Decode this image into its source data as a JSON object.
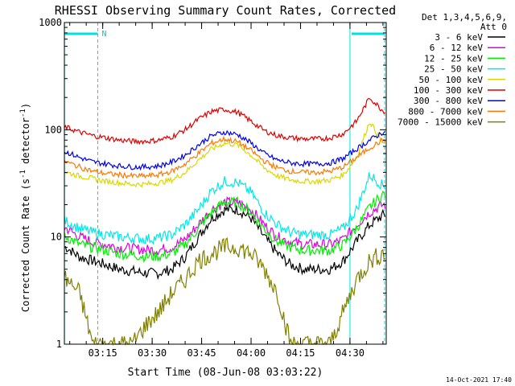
{
  "chart_data": {
    "type": "line",
    "title": "RHESSI Observing Summary Count Rates, Corrected",
    "xlabel": "Start Time (08-Jun-08 03:03:22)",
    "ylabel_main": "Corrected Count Rate (s",
    "ylabel_sup1": "-1",
    "ylabel_mid": " detector",
    "ylabel_sup2": "-1",
    "ylabel_end": ")",
    "y_scale": "log",
    "ylim": [
      1,
      1000
    ],
    "xlim_minutes": [
      3.37,
      101.0
    ],
    "x_ticks": [
      {
        "label": "03:15",
        "minute": 15
      },
      {
        "label": "03:30",
        "minute": 30
      },
      {
        "label": "03:45",
        "minute": 45
      },
      {
        "label": "04:00",
        "minute": 60
      },
      {
        "label": "04:15",
        "minute": 75
      },
      {
        "label": "04:30",
        "minute": 90
      }
    ],
    "y_ticks": [
      {
        "label": "1",
        "value": 1
      },
      {
        "label": "10",
        "value": 10
      },
      {
        "label": "100",
        "value": 100
      },
      {
        "label": "1000",
        "value": 1000
      }
    ],
    "legend_header": [
      "Det 1,3,4,5,6,9,",
      "Att 0"
    ],
    "legend_placement": "right",
    "night_bars": [
      {
        "from_minute": 3.4,
        "to_minute": 13.5,
        "label": "N"
      },
      {
        "from_minute": 90.5,
        "to_minute": 100.5,
        "label": ""
      }
    ],
    "saa_lines_minutes": [
      3.4,
      13.5,
      90.0,
      100.5
    ],
    "series": [
      {
        "name": "3 - 6 keV",
        "color": "#000000",
        "x": [
          4,
          8,
          12,
          16,
          20,
          24,
          28,
          32,
          36,
          40,
          44,
          48,
          52,
          56,
          60,
          64,
          68,
          72,
          76,
          80,
          84,
          88,
          92,
          96,
          100
        ],
        "y": [
          8,
          6.5,
          6,
          5.5,
          5,
          4.8,
          4.6,
          4.6,
          5,
          6.5,
          10,
          15,
          18,
          18,
          15,
          10,
          7,
          5.5,
          5,
          5,
          5,
          6,
          9,
          13,
          16
        ]
      },
      {
        "name": "6 - 12 keV",
        "color": "#e000e0",
        "x": [
          4,
          8,
          12,
          16,
          20,
          24,
          28,
          32,
          36,
          40,
          44,
          48,
          52,
          56,
          60,
          64,
          68,
          72,
          76,
          80,
          84,
          88,
          92,
          96,
          100
        ],
        "y": [
          12,
          10,
          9,
          8.5,
          8,
          7.8,
          7.6,
          7.6,
          8,
          9.5,
          13,
          18,
          21,
          21,
          18,
          13,
          10,
          9,
          8.5,
          8.5,
          8.5,
          9.5,
          13,
          17,
          20
        ]
      },
      {
        "name": "12 - 25 keV",
        "color": "#00ee00",
        "x": [
          4,
          8,
          12,
          16,
          20,
          24,
          28,
          32,
          36,
          40,
          44,
          48,
          52,
          56,
          60,
          64,
          68,
          72,
          76,
          80,
          84,
          88,
          92,
          96,
          100
        ],
        "y": [
          10,
          8.5,
          8,
          7.5,
          7,
          6.8,
          6.6,
          6.6,
          7,
          8.5,
          12,
          17,
          21,
          21,
          17,
          12,
          9,
          8,
          7.5,
          7.5,
          7.5,
          8.5,
          12,
          19,
          25
        ]
      },
      {
        "name": "25 - 50 keV",
        "color": "#00e8e8",
        "x": [
          4,
          8,
          12,
          16,
          20,
          24,
          28,
          32,
          36,
          40,
          44,
          48,
          52,
          56,
          60,
          64,
          68,
          72,
          76,
          80,
          84,
          88,
          92,
          96,
          100
        ],
        "y": [
          14,
          12,
          11,
          10.5,
          10,
          9.8,
          9.6,
          9.8,
          10.5,
          13,
          18,
          27,
          33,
          32,
          26,
          17,
          13,
          11,
          10.5,
          10.5,
          10.5,
          12,
          18,
          38,
          30
        ]
      },
      {
        "name": "50 - 100 keV",
        "color": "#d8d800",
        "x": [
          4,
          8,
          12,
          16,
          20,
          24,
          28,
          32,
          36,
          40,
          44,
          48,
          52,
          56,
          60,
          64,
          68,
          72,
          76,
          80,
          84,
          88,
          92,
          96,
          100
        ],
        "y": [
          40,
          37,
          35,
          33,
          32,
          31,
          31,
          32,
          34,
          40,
          52,
          66,
          75,
          72,
          58,
          44,
          37,
          34,
          33,
          33,
          34,
          38,
          55,
          120,
          75
        ]
      },
      {
        "name": "100 - 300 keV",
        "color": "#e00000",
        "x": [
          4,
          8,
          12,
          16,
          20,
          24,
          28,
          32,
          36,
          40,
          44,
          48,
          52,
          56,
          60,
          64,
          68,
          72,
          76,
          80,
          84,
          88,
          92,
          96,
          100
        ],
        "y": [
          105,
          95,
          88,
          84,
          80,
          78,
          78,
          80,
          86,
          100,
          125,
          148,
          155,
          145,
          120,
          98,
          88,
          84,
          82,
          82,
          84,
          92,
          120,
          200,
          150
        ]
      },
      {
        "name": "300 - 800 keV",
        "color": "#0000ee",
        "x": [
          4,
          8,
          12,
          16,
          20,
          24,
          28,
          32,
          36,
          40,
          44,
          48,
          52,
          56,
          60,
          64,
          68,
          72,
          76,
          80,
          84,
          88,
          92,
          96,
          100
        ],
        "y": [
          62,
          55,
          50,
          48,
          46,
          45,
          45,
          46,
          50,
          58,
          72,
          88,
          95,
          90,
          75,
          60,
          52,
          49,
          48,
          48,
          49,
          54,
          66,
          80,
          95
        ]
      },
      {
        "name": "800 - 7000 keV",
        "color": "#ff7800",
        "x": [
          4,
          8,
          12,
          16,
          20,
          24,
          28,
          32,
          36,
          40,
          44,
          48,
          52,
          56,
          60,
          64,
          68,
          72,
          76,
          80,
          84,
          88,
          92,
          96,
          100
        ],
        "y": [
          50,
          45,
          41,
          39,
          38,
          37,
          37,
          38,
          41,
          48,
          60,
          75,
          82,
          77,
          64,
          51,
          44,
          41,
          40,
          40,
          41,
          45,
          55,
          68,
          80
        ]
      },
      {
        "name": "7000 - 15000 keV",
        "color": "#808000",
        "x": [
          4,
          8,
          12,
          16,
          20,
          24,
          28,
          32,
          36,
          40,
          44,
          48,
          52,
          56,
          60,
          64,
          68,
          72,
          76,
          80,
          84,
          88,
          92,
          96,
          100
        ],
        "y": [
          4,
          3,
          1,
          1,
          1,
          1,
          1.5,
          2,
          3,
          4,
          6,
          7,
          8,
          8,
          7,
          5,
          3,
          1,
          1,
          1,
          1,
          2,
          4,
          6,
          7
        ]
      }
    ]
  },
  "footer": {
    "timestamp": "14-Oct-2021 17:40"
  }
}
